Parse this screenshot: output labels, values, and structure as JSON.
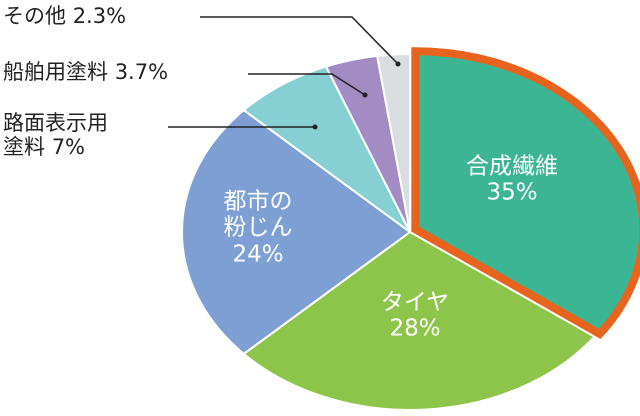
{
  "chart_data": {
    "type": "pie",
    "categories": [
      "合成繊維",
      "タイヤ",
      "都市の\n粉じん",
      "路面表示用\n塗料",
      "船舶用塗料",
      "その他"
    ],
    "values": [
      35,
      28,
      24,
      7,
      3.7,
      2.3
    ],
    "value_labels": [
      "35%",
      "28%",
      "24%",
      "7%",
      "3.7%",
      "2.3%"
    ],
    "colors": [
      "#3bb594",
      "#8dc54b",
      "#7d9fd4",
      "#86cfd2",
      "#a38cc4",
      "#d9dde0"
    ],
    "highlight_color": "#e8641e"
  }
}
